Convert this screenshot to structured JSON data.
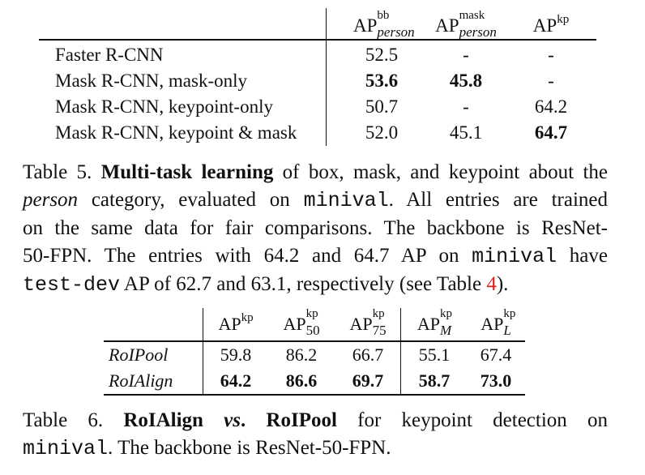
{
  "table5": {
    "header": {
      "col1": {
        "base": "AP",
        "sup": "bb",
        "sub": "person"
      },
      "col2": {
        "base": "AP",
        "sup": "mask",
        "sub": "person"
      },
      "col3": {
        "base": "AP",
        "sup": "kp"
      }
    },
    "rows": [
      {
        "label": "Faster R-CNN",
        "v1": "52.5",
        "v2": "-",
        "v3": "-"
      },
      {
        "label": "Mask R-CNN, mask-only",
        "v1": "53.6",
        "v2": "45.8",
        "v3": "-"
      },
      {
        "label": "Mask R-CNN, keypoint-only",
        "v1": "50.7",
        "v2": "-",
        "v3": "64.2"
      },
      {
        "label": "Mask R-CNN, keypoint & mask",
        "v1": "52.0",
        "v2": "45.1",
        "v3": "64.7"
      }
    ]
  },
  "caption5": {
    "prefix": "Table 5. ",
    "bold": "Multi-task learning",
    "t1": " of box, mask, and keypoint about the",
    "ital": "person",
    "t2": " category, evaluated on ",
    "code1": "minival",
    "t3": ". All entries are trained",
    "line3": "on the same data for fair comparisons. The backbone is ResNet-",
    "t4": "50-FPN. The entries with 64.2 and 64.7 AP on ",
    "code2": "minival",
    "t5": " have",
    "code3": "test-dev",
    "t6": " AP of 62.7 and 63.1, respectively (see Table ",
    "ref": "4",
    "t7": ")."
  },
  "table6": {
    "header": [
      {
        "base": "AP",
        "sup": "kp",
        "sub": ""
      },
      {
        "base": "AP",
        "sup": "kp",
        "sub": "50"
      },
      {
        "base": "AP",
        "sup": "kp",
        "sub": "75"
      },
      {
        "base": "AP",
        "sup": "kp",
        "sub": "M"
      },
      {
        "base": "AP",
        "sup": "kp",
        "sub": "L"
      }
    ],
    "rows": [
      {
        "label": "RoIPool",
        "values": [
          "59.8",
          "86.2",
          "66.7",
          "55.1",
          "67.4"
        ]
      },
      {
        "label": "RoIAlign",
        "values": [
          "64.2",
          "86.6",
          "69.7",
          "58.7",
          "73.0"
        ]
      }
    ]
  },
  "caption6": {
    "prefix": "Table 6. ",
    "bold1": "RoIAlign",
    "vs": " vs",
    "bold2": ". RoIPool",
    "t1": " for keypoint detection on",
    "code": "minival",
    "t2": ". The backbone is ResNet-50-FPN."
  }
}
